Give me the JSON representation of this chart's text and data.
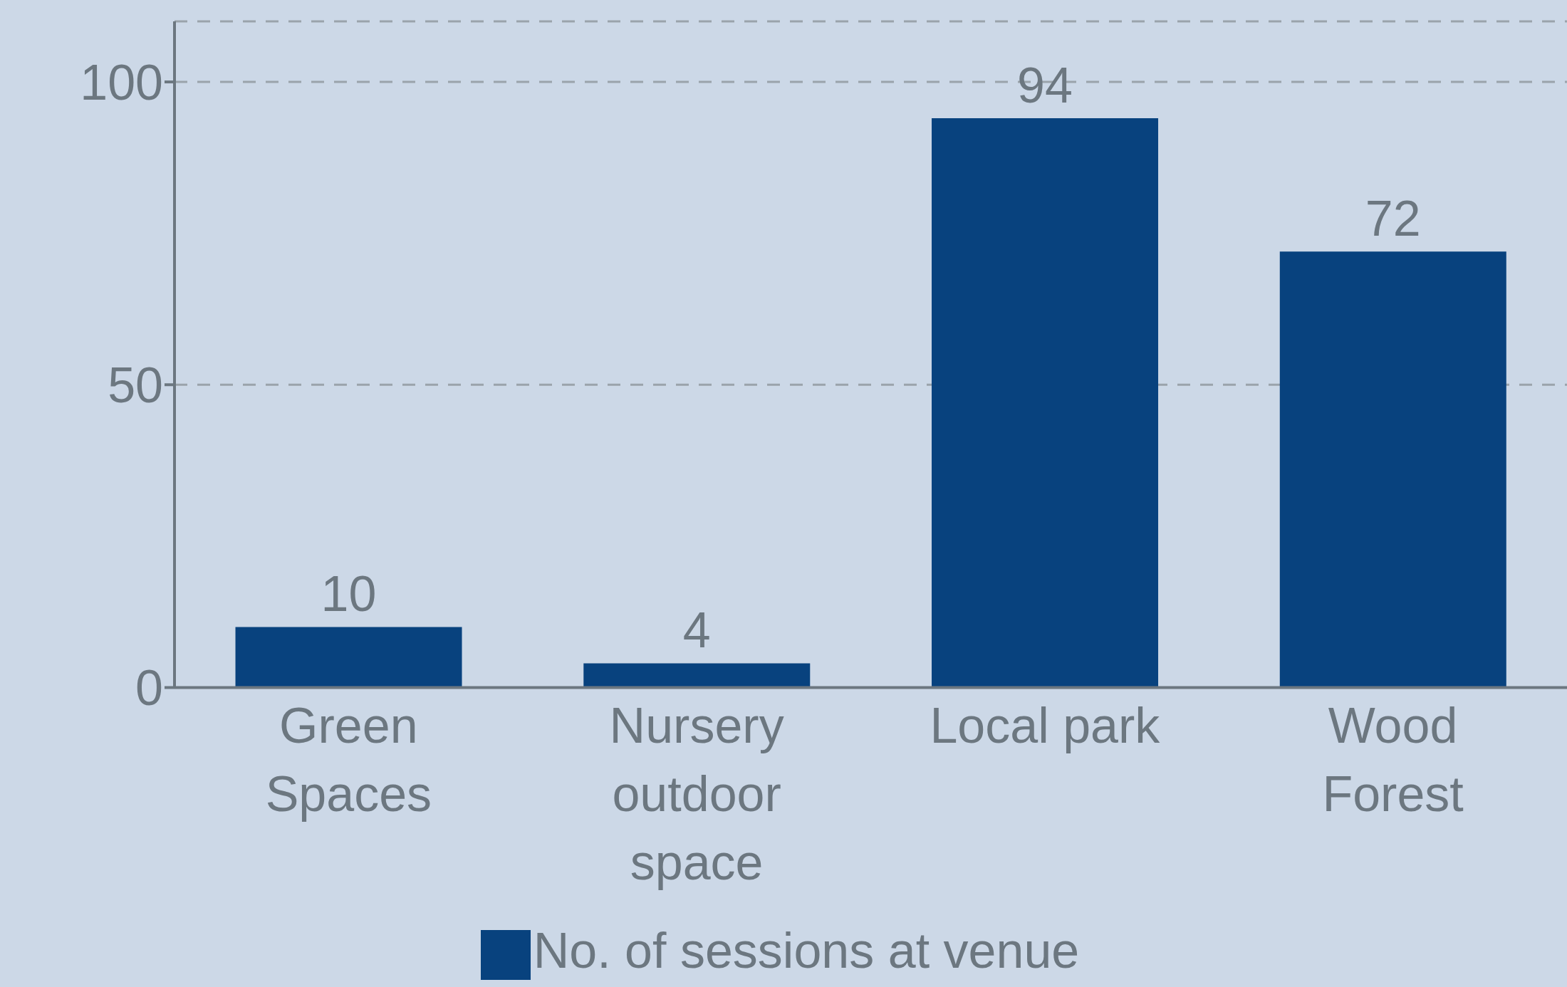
{
  "chart_data": {
    "type": "bar",
    "categories": [
      "Green Spaces",
      "Nursery outdoor space",
      "Local park",
      "Wood Forest"
    ],
    "series": [
      {
        "name": "No. of sessions at venue",
        "color": "#08427e",
        "values": [
          10,
          4,
          94,
          72
        ]
      }
    ],
    "ylim": [
      0,
      110
    ],
    "yticks": [
      0,
      50,
      100
    ],
    "grid": "y",
    "legend": "bottom",
    "data_labels": true
  }
}
